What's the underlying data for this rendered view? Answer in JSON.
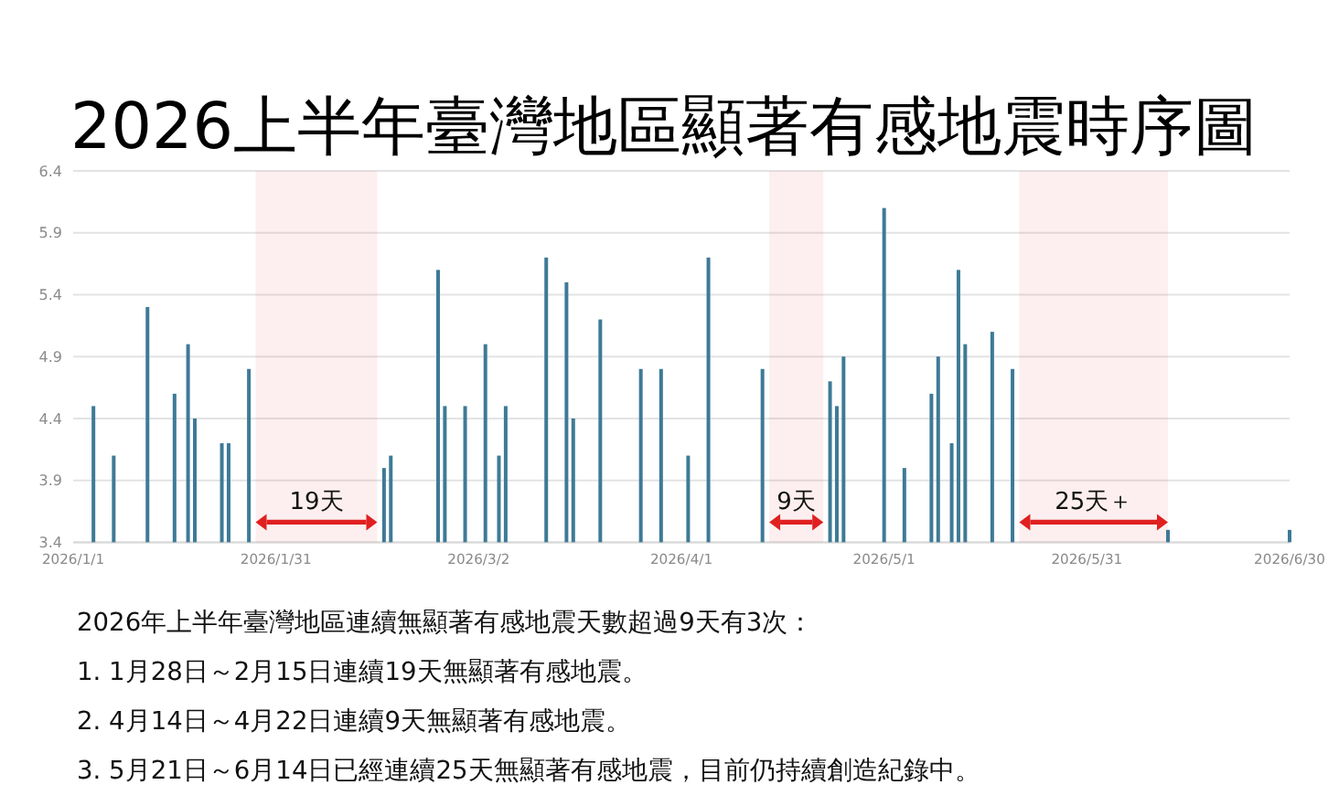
{
  "chart_data": {
    "type": "bar",
    "title": "2026上半年臺灣地區顯著有感地震時序圖",
    "x": [
      "2026-01-04",
      "2026-01-07",
      "2026-01-12",
      "2026-01-16",
      "2026-01-18",
      "2026-01-19",
      "2026-01-23",
      "2026-01-24",
      "2026-01-27",
      "2026-02-16",
      "2026-02-17",
      "2026-02-24",
      "2026-02-25",
      "2026-02-28",
      "2026-03-03",
      "2026-03-05",
      "2026-03-06",
      "2026-03-12",
      "2026-03-15",
      "2026-03-16",
      "2026-03-20",
      "2026-03-26",
      "2026-03-29",
      "2026-04-02",
      "2026-04-05",
      "2026-04-13",
      "2026-04-23",
      "2026-04-24",
      "2026-04-25",
      "2026-05-01",
      "2026-05-04",
      "2026-05-08",
      "2026-05-09",
      "2026-05-11",
      "2026-05-12",
      "2026-05-13",
      "2026-05-17",
      "2026-05-20",
      "2026-06-12",
      "2026-06-30"
    ],
    "values": [
      4.5,
      4.1,
      5.3,
      4.6,
      5.0,
      4.4,
      4.2,
      4.2,
      4.8,
      4.0,
      4.1,
      5.6,
      4.5,
      4.5,
      5.0,
      4.1,
      4.5,
      5.7,
      5.5,
      4.4,
      5.2,
      4.8,
      4.8,
      4.1,
      5.7,
      4.8,
      4.7,
      4.5,
      4.9,
      6.1,
      4.0,
      4.6,
      4.9,
      4.2,
      5.6,
      5.0,
      5.1,
      4.8,
      3.5,
      3.5
    ],
    "color": "#3e7a97",
    "xlim": [
      "2026-01-01",
      "2026-06-30"
    ],
    "xticks": [
      {
        "value": "2026-01-01",
        "label": "2026/1/1"
      },
      {
        "value": "2026-01-31",
        "label": "2026/1/31"
      },
      {
        "value": "2026-03-02",
        "label": "2026/3/2"
      },
      {
        "value": "2026-04-01",
        "label": "2026/4/1"
      },
      {
        "value": "2026-05-01",
        "label": "2026/5/1"
      },
      {
        "value": "2026-05-31",
        "label": "2026/5/31"
      },
      {
        "value": "2026-06-30",
        "label": "2026/6/30"
      }
    ],
    "ylim": [
      3.4,
      6.4
    ],
    "yticks": [
      3.4,
      3.9,
      4.4,
      4.9,
      5.4,
      5.9,
      6.4
    ],
    "grid": "y",
    "bands": [
      {
        "axis": "x",
        "from": "2026-01-28",
        "to": "2026-02-15",
        "label": "19天",
        "color": "#e02020"
      },
      {
        "axis": "x",
        "from": "2026-04-14",
        "to": "2026-04-22",
        "label": "9天",
        "color": "#e02020"
      },
      {
        "axis": "x",
        "from": "2026-05-21",
        "to": "2026-06-12",
        "label": "25天＋",
        "color": "#e02020"
      }
    ],
    "annotations": [
      "2026年上半年臺灣地區連續無顯著有感地震天數超過9天有3次：",
      "1. 1月28日～2月15日連續19天無顯著有感地震。",
      "2. 4月14日～4月22日連續9天無顯著有感地震。",
      "3. 5月21日～6月14日已經連續25天無顯著有感地震，目前仍持續創造紀錄中。"
    ]
  }
}
